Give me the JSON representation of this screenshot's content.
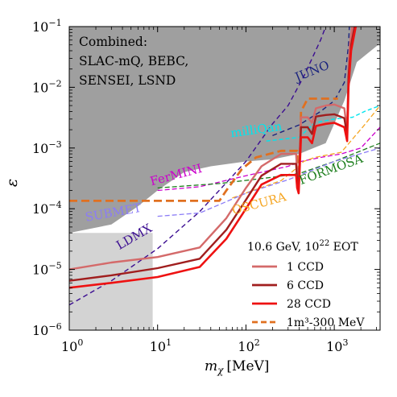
{
  "chart_data": {
    "type": "line",
    "xlabel": "m_χ [MeV]",
    "xlabel_main": "m",
    "xlabel_sub": "χ",
    "xlabel_unit": "[MeV]",
    "ylabel": "ε",
    "x_scale": "log",
    "y_scale": "log",
    "xlim": [
      1,
      3300
    ],
    "ylim": [
      1e-06,
      0.1
    ],
    "x_ticks": [
      {
        "value": 1,
        "base": "10",
        "exp": "0"
      },
      {
        "value": 10,
        "base": "10",
        "exp": "1"
      },
      {
        "value": 100,
        "base": "10",
        "exp": "2"
      },
      {
        "value": 1000,
        "base": "10",
        "exp": "3"
      }
    ],
    "y_ticks": [
      {
        "value": 1e-06,
        "base": "10",
        "exp": "−6"
      },
      {
        "value": 1e-05,
        "base": "10",
        "exp": "−5"
      },
      {
        "value": 0.0001,
        "base": "10",
        "exp": "−4"
      },
      {
        "value": 0.001,
        "base": "10",
        "exp": "−3"
      },
      {
        "value": 0.01,
        "base": "10",
        "exp": "−2"
      },
      {
        "value": 0.1,
        "base": "10",
        "exp": "−1"
      }
    ],
    "combined_label_lines": [
      "Combined:",
      "SLAC-mQ, BEBC,",
      "SENSEI, LSND"
    ],
    "regions": [
      {
        "name": "combined-excluded",
        "color": "#9f9f9f",
        "points": [
          [
            1,
            0.1
          ],
          [
            1,
            4e-05
          ],
          [
            3,
            5.5e-05
          ],
          [
            6,
            0.00011
          ],
          [
            10,
            0.0002
          ],
          [
            20,
            0.0004
          ],
          [
            40,
            0.0005
          ],
          [
            100,
            0.0006
          ],
          [
            200,
            0.00065
          ],
          [
            400,
            0.0008
          ],
          [
            800,
            0.0012
          ],
          [
            1300,
            0.006
          ],
          [
            1800,
            0.026
          ],
          [
            3300,
            0.053
          ],
          [
            3300,
            0.1
          ]
        ]
      },
      {
        "name": "light-excluded",
        "color": "#d3d3d3",
        "points": [
          [
            1,
            4e-05
          ],
          [
            8.8,
            4e-05
          ],
          [
            8.8,
            1e-06
          ],
          [
            1,
            1e-06
          ]
        ]
      }
    ],
    "series": [
      {
        "name": "LDMX",
        "color": "#3b0d91",
        "dash": "6,4",
        "width": 1.4,
        "points": [
          [
            1,
            2.6e-06
          ],
          [
            3,
            6.5e-06
          ],
          [
            10,
            2.2e-05
          ],
          [
            30,
            9e-05
          ],
          [
            100,
            0.0006
          ],
          [
            200,
            0.0025
          ],
          [
            300,
            0.005
          ],
          [
            450,
            0.015
          ],
          [
            700,
            0.06
          ],
          [
            800,
            0.1
          ]
        ]
      },
      {
        "name": "JUNO",
        "color": "#1a237e",
        "dash": "6,4",
        "width": 1.4,
        "points": [
          [
            200,
            0.0016
          ],
          [
            400,
            0.0024
          ],
          [
            700,
            0.004
          ],
          [
            1000,
            0.006
          ],
          [
            1300,
            0.012
          ],
          [
            1450,
            0.05
          ],
          [
            1480,
            0.1
          ]
        ]
      },
      {
        "name": "milliQan",
        "color": "#00e5ee",
        "dash": "5,3",
        "width": 1.4,
        "points": [
          [
            170,
            0.0013
          ],
          [
            400,
            0.0015
          ],
          [
            600,
            0.0026
          ],
          [
            1000,
            0.003
          ],
          [
            1600,
            0.0032
          ],
          [
            2200,
            0.004
          ],
          [
            3300,
            0.005
          ]
        ]
      },
      {
        "name": "FerMINI",
        "color": "#cc00cc",
        "dash": "6,3",
        "width": 1.3,
        "points": [
          [
            10,
            0.0002
          ],
          [
            30,
            0.00023
          ],
          [
            100,
            0.00035
          ],
          [
            300,
            0.0005
          ],
          [
            420,
            0.0006
          ],
          [
            700,
            0.0007
          ],
          [
            1200,
            0.0008
          ],
          [
            2000,
            0.001
          ],
          [
            3300,
            0.0022
          ]
        ]
      },
      {
        "name": "FORMOSA",
        "color": "#1b7d1b",
        "dash": "6,3",
        "width": 1.3,
        "points": [
          [
            10,
            0.00022
          ],
          [
            50,
            0.00026
          ],
          [
            200,
            0.00033
          ],
          [
            400,
            0.00038
          ],
          [
            1000,
            0.0006
          ],
          [
            3300,
            0.0012
          ]
        ]
      },
      {
        "name": "OSCURA",
        "color": "#f5a623",
        "dash": "6,3",
        "width": 1.3,
        "points": [
          [
            70,
            0.00015
          ],
          [
            120,
            0.0002
          ],
          [
            250,
            0.00029
          ],
          [
            350,
            0.00043
          ],
          [
            450,
            0.0006
          ],
          [
            600,
            0.0007
          ],
          [
            1200,
            0.00085
          ],
          [
            2200,
            0.0024
          ],
          [
            3300,
            0.005
          ]
        ]
      },
      {
        "name": "SUBMET",
        "color": "#8b7cf6",
        "dash": "6,3",
        "width": 1.3,
        "points": [
          [
            10,
            7.5e-05
          ],
          [
            30,
            8.5e-05
          ],
          [
            100,
            0.00018
          ],
          [
            300,
            0.0003
          ],
          [
            1000,
            0.0006
          ],
          [
            3300,
            0.001
          ]
        ]
      },
      {
        "name": "1m³-300 MeV",
        "color": "#e07020",
        "dash": "10,5",
        "width": 2.8,
        "points": [
          [
            1,
            0.000135
          ],
          [
            50,
            0.000135
          ],
          [
            60,
            0.0002
          ],
          [
            90,
            0.00045
          ],
          [
            130,
            0.0007
          ],
          [
            250,
            0.0009
          ],
          [
            380,
            0.0009
          ],
          [
            390,
            0.0004
          ],
          [
            400,
            0.0003
          ],
          [
            420,
            0.004
          ],
          [
            500,
            0.0065
          ],
          [
            800,
            0.0065
          ],
          [
            1000,
            0.0065
          ],
          [
            1100,
            0.0065
          ]
        ]
      },
      {
        "name": "1 CCD",
        "color": "#d46a6a",
        "dash": "",
        "width": 2.4,
        "points": [
          [
            1,
            1e-05
          ],
          [
            3,
            1.3e-05
          ],
          [
            10,
            1.6e-05
          ],
          [
            30,
            2.3e-05
          ],
          [
            60,
            7e-05
          ],
          [
            100,
            0.00022
          ],
          [
            150,
            0.0005
          ],
          [
            250,
            0.0008
          ],
          [
            370,
            0.0008
          ],
          [
            380,
            0.0004
          ],
          [
            395,
            0.0003
          ],
          [
            420,
            0.0032
          ],
          [
            500,
            0.0032
          ],
          [
            560,
            0.0026
          ],
          [
            620,
            0.0045
          ],
          [
            800,
            0.005
          ],
          [
            1000,
            0.0052
          ],
          [
            1300,
            0.0045
          ],
          [
            1400,
            0.0019
          ],
          [
            1450,
            0.02
          ],
          [
            1500,
            0.05
          ],
          [
            1600,
            0.1
          ]
        ]
      },
      {
        "name": "6 CCD",
        "color": "#a01e1e",
        "dash": "",
        "width": 2.4,
        "points": [
          [
            1,
            6.5e-06
          ],
          [
            3,
            8e-06
          ],
          [
            10,
            1.05e-05
          ],
          [
            30,
            1.5e-05
          ],
          [
            60,
            4.5e-05
          ],
          [
            100,
            0.00014
          ],
          [
            150,
            0.00035
          ],
          [
            250,
            0.00055
          ],
          [
            370,
            0.00055
          ],
          [
            380,
            0.0003
          ],
          [
            395,
            0.00025
          ],
          [
            420,
            0.0022
          ],
          [
            500,
            0.0022
          ],
          [
            560,
            0.0017
          ],
          [
            620,
            0.0033
          ],
          [
            800,
            0.0035
          ],
          [
            1000,
            0.0036
          ],
          [
            1300,
            0.0031
          ],
          [
            1400,
            0.0016
          ],
          [
            1450,
            0.015
          ],
          [
            1550,
            0.05
          ],
          [
            1700,
            0.1
          ]
        ]
      },
      {
        "name": "28 CCD",
        "color": "#ee1111",
        "dash": "",
        "width": 2.6,
        "points": [
          [
            1,
            5e-06
          ],
          [
            3,
            6e-06
          ],
          [
            10,
            7.5e-06
          ],
          [
            30,
            1.1e-05
          ],
          [
            60,
            3.2e-05
          ],
          [
            100,
            0.0001
          ],
          [
            150,
            0.00025
          ],
          [
            250,
            0.00036
          ],
          [
            370,
            0.00036
          ],
          [
            380,
            0.00022
          ],
          [
            395,
            0.00018
          ],
          [
            420,
            0.0015
          ],
          [
            500,
            0.0015
          ],
          [
            560,
            0.0012
          ],
          [
            620,
            0.0023
          ],
          [
            800,
            0.0025
          ],
          [
            1000,
            0.0026
          ],
          [
            1300,
            0.0022
          ],
          [
            1400,
            0.0013
          ],
          [
            1450,
            0.01
          ],
          [
            1550,
            0.04
          ],
          [
            1750,
            0.1
          ]
        ]
      }
    ],
    "curve_labels": [
      {
        "text": "JUNO",
        "color": "#1a237e",
        "x": 380,
        "y": 0.0125,
        "angle": -22,
        "size": 15
      },
      {
        "text": "milliQan",
        "color": "#00e5ee",
        "x": 68,
        "y": 0.0015,
        "angle": -8,
        "size": 15
      },
      {
        "text": "FerMINI",
        "color": "#cc00cc",
        "x": 8.5,
        "y": 0.00024,
        "angle": -15,
        "size": 15
      },
      {
        "text": "FORMOSA",
        "color": "#1b7d1b",
        "x": 420,
        "y": 0.00025,
        "angle": -20,
        "size": 15
      },
      {
        "text": "OSCURA",
        "color": "#f5a623",
        "x": 72,
        "y": 8e-05,
        "angle": -15,
        "size": 15
      },
      {
        "text": "SUBMET",
        "color": "#8b7cf6",
        "x": 1.55,
        "y": 6.2e-05,
        "angle": -10,
        "size": 15
      },
      {
        "text": "LDMX",
        "color": "#3b0d91",
        "x": 3.7,
        "y": 2.1e-05,
        "angle": -30,
        "size": 15
      }
    ],
    "legend": {
      "position": "lower right",
      "title": "10.6 GeV, 10²² EOT",
      "title_main": "10.6 GeV, 10",
      "title_exp": "22",
      "title_tail": " EOT",
      "entries": [
        {
          "label": "1 CCD",
          "color": "#d46a6a",
          "dash": ""
        },
        {
          "label": "6 CCD",
          "color": "#a01e1e",
          "dash": ""
        },
        {
          "label": "28 CCD",
          "color": "#ee1111",
          "dash": ""
        },
        {
          "label": "1m³-300 MeV",
          "color": "#e07020",
          "dash": "7,4"
        }
      ]
    }
  }
}
